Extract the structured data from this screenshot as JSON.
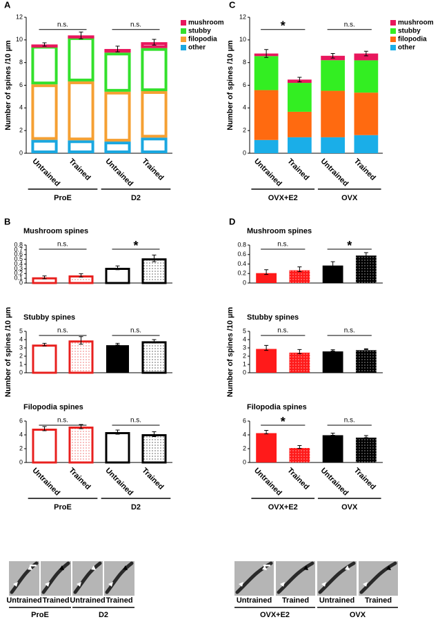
{
  "chart_data": [
    {
      "type": "stacked_bar",
      "panel": "A",
      "style": "outline",
      "ylabel": "Number of spines /10 µm",
      "categories": [
        "Untrained",
        "Trained",
        "Untrained",
        "Trained"
      ],
      "groups": [
        "ProE",
        "D2"
      ],
      "group_annotations": [
        "n.s.",
        "n.s."
      ],
      "ylim": [
        0,
        12
      ],
      "yticks": [
        0,
        2,
        4,
        6,
        8,
        10,
        12
      ],
      "series": [
        {
          "name": "other",
          "color": "#1aa7e0",
          "values": [
            1.18,
            1.14,
            1.03,
            1.38
          ]
        },
        {
          "name": "filopodia",
          "color": "#f5a033",
          "values": [
            4.9,
            5.2,
            4.4,
            4.1
          ]
        },
        {
          "name": "stubby",
          "color": "#33e02c",
          "values": [
            3.4,
            3.9,
            3.45,
            3.8
          ]
        },
        {
          "name": "mushroom",
          "color": "#e8175d",
          "values": [
            0.12,
            0.16,
            0.32,
            0.52
          ],
          "errors": [
            0.15,
            0.3,
            0.25,
            0.25
          ]
        }
      ]
    },
    {
      "type": "bar",
      "panel": "B",
      "title": "Mushroom spines",
      "group_annotations": [
        "n.s.",
        "*"
      ],
      "values": [
        0.12,
        0.16,
        0.32,
        0.52
      ],
      "errors": [
        0.03,
        0.035,
        0.04,
        0.07
      ],
      "ylim": [
        0,
        0.8
      ],
      "yticks": [
        0,
        0.1,
        0.2,
        0.3,
        0.4,
        0.5,
        0.6,
        0.7,
        0.8
      ],
      "bar_colors": [
        "#e8201e",
        "#e8201e",
        "#000000",
        "#000000"
      ],
      "bar_fills": [
        "none",
        "dots",
        "none",
        "dots"
      ]
    },
    {
      "type": "bar",
      "title": "Stubby spines",
      "ylabel": "Number of spines /10 µm",
      "group_annotations": [
        "n.s.",
        "n.s."
      ],
      "values": [
        3.4,
        3.9,
        3.45,
        3.8
      ],
      "errors": [
        0.15,
        0.45,
        0.1,
        0.2
      ],
      "ylim": [
        0,
        5
      ],
      "yticks": [
        0,
        1,
        2,
        3,
        4,
        5
      ],
      "bar_colors": [
        "#e8201e",
        "#e8201e",
        "#000000",
        "#000000"
      ],
      "bar_fills": [
        "none",
        "dots",
        "solid",
        "dots"
      ]
    },
    {
      "type": "bar",
      "title": "Filopodia spines",
      "group_annotations": [
        "n.s.",
        "n.s."
      ],
      "categories": [
        "Untrained",
        "Trained",
        "Untrained",
        "Trained"
      ],
      "groups": [
        "ProE",
        "D2"
      ],
      "values": [
        4.9,
        5.2,
        4.4,
        4.1
      ],
      "errors": [
        0.3,
        0.3,
        0.3,
        0.35
      ],
      "ylim": [
        0,
        6
      ],
      "yticks": [
        0,
        2,
        4,
        6
      ],
      "bar_colors": [
        "#e8201e",
        "#e8201e",
        "#000000",
        "#000000"
      ],
      "bar_fills": [
        "none",
        "dots",
        "none",
        "dots"
      ]
    },
    {
      "type": "stacked_bar",
      "panel": "C",
      "style": "filled",
      "ylabel": "Number of spines /10 µm",
      "categories": [
        "Untrained",
        "Trained",
        "Untrained",
        "Trained"
      ],
      "groups": [
        "OVX+E2",
        "OVX"
      ],
      "group_annotations": [
        "*",
        "n.s."
      ],
      "ylim": [
        0,
        12
      ],
      "yticks": [
        0,
        2,
        4,
        6,
        8,
        10,
        12
      ],
      "series": [
        {
          "name": "other",
          "color": "#1aaee8",
          "values": [
            1.17,
            1.41,
            1.41,
            1.6
          ]
        },
        {
          "name": "filopodia",
          "color": "#ff6a10",
          "values": [
            4.4,
            2.25,
            4.1,
            3.75
          ]
        },
        {
          "name": "stubby",
          "color": "#33ee22",
          "values": [
            3.0,
            2.55,
            2.7,
            2.85
          ]
        },
        {
          "name": "mushroom",
          "color": "#e8175d",
          "values": [
            0.23,
            0.29,
            0.39,
            0.6
          ],
          "errors": [
            0.35,
            0.2,
            0.2,
            0.2
          ]
        }
      ]
    },
    {
      "type": "bar",
      "panel": "D",
      "title": "Mushroom spines",
      "group_annotations": [
        "n.s.",
        "*"
      ],
      "values": [
        0.23,
        0.29,
        0.39,
        0.6
      ],
      "errors": [
        0.05,
        0.05,
        0.06,
        0.04
      ],
      "ylim": [
        0,
        0.8
      ],
      "yticks": [
        0,
        0.2,
        0.4,
        0.6,
        0.8
      ],
      "bar_colors": [
        "#ff1a1a",
        "#ff1a1a",
        "#000000",
        "#000000"
      ],
      "bar_fills": [
        "solid",
        "dots",
        "solid",
        "dots"
      ]
    },
    {
      "type": "bar",
      "title": "Stubby spines",
      "ylabel": "Number of spines /10 µm",
      "group_annotations": [
        "n.s.",
        "n.s."
      ],
      "values": [
        3.0,
        2.55,
        2.7,
        2.85
      ],
      "errors": [
        0.3,
        0.25,
        0.08,
        0.05
      ],
      "ylim": [
        0,
        5
      ],
      "yticks": [
        0,
        1,
        2,
        3,
        4,
        5
      ],
      "bar_colors": [
        "#ff1a1a",
        "#ff1a1a",
        "#000000",
        "#000000"
      ],
      "bar_fills": [
        "solid",
        "dots",
        "solid",
        "dots"
      ]
    },
    {
      "type": "bar",
      "title": "Filopodia spines",
      "group_annotations": [
        "*",
        "n.s."
      ],
      "categories": [
        "Untrained",
        "Trained",
        "Untrained",
        "Trained"
      ],
      "groups": [
        "OVX+E2",
        "OVX"
      ],
      "values": [
        4.4,
        2.25,
        4.1,
        3.75
      ],
      "errors": [
        0.25,
        0.2,
        0.15,
        0.15
      ],
      "ylim": [
        0,
        6
      ],
      "yticks": [
        0,
        2,
        4,
        6
      ],
      "bar_colors": [
        "#ff1a1a",
        "#ff1a1a",
        "#000000",
        "#000000"
      ],
      "bar_fills": [
        "solid",
        "dots",
        "solid",
        "dots"
      ]
    }
  ],
  "micrographs": [
    {
      "labels": [
        "Untrained",
        "Trained",
        "Untrained",
        "Trained"
      ],
      "groups": [
        "ProE",
        "D2"
      ]
    },
    {
      "labels": [
        "Untrained",
        "Trained",
        "Untrained",
        "Trained"
      ],
      "groups": [
        "OVX+E2",
        "OVX"
      ]
    }
  ]
}
